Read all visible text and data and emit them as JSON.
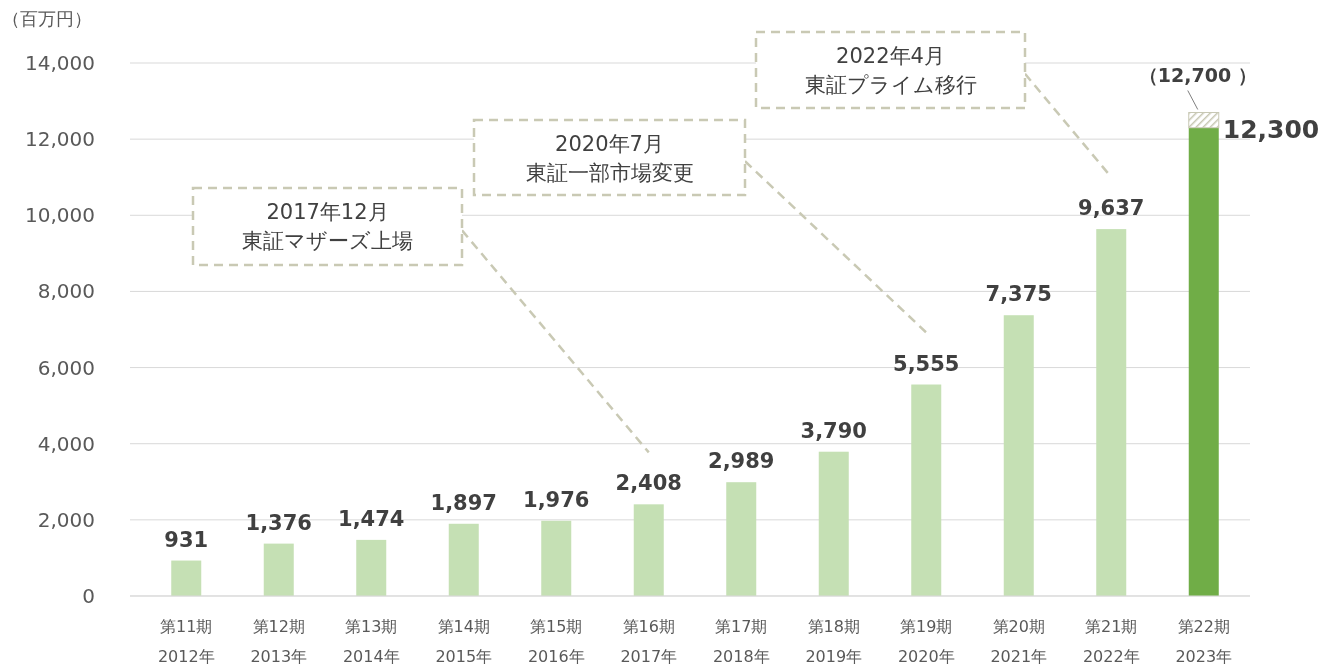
{
  "chart_data": {
    "type": "bar",
    "stacked": true,
    "ylabel": "（百万円）",
    "categories": [
      "第11期\n2012年",
      "第12期\n2013年",
      "第13期\n2014年",
      "第14期\n2015年",
      "第15期\n2016年",
      "第16期\n2017年",
      "第17期\n2018年",
      "第18期\n2019年",
      "第19期\n2020年",
      "第20期\n2021年",
      "第21期\n2022年",
      "第22期\n2023年"
    ],
    "series": [
      {
        "colors": [
          "#c5e0b4",
          "#c5e0b4",
          "#c5e0b4",
          "#c5e0b4",
          "#c5e0b4",
          "#c5e0b4",
          "#c5e0b4",
          "#c5e0b4",
          "#c5e0b4",
          "#c5e0b4",
          "#c5e0b4",
          "#70ad47"
        ],
        "values": [
          931,
          1376,
          1474,
          1897,
          1976,
          2408,
          2989,
          3790,
          5555,
          7375,
          9637,
          12300
        ],
        "value_labels": [
          "931",
          "1,376",
          "1,474",
          "1,897",
          "1,976",
          "2,408",
          "2,989",
          "3,790",
          "5,555",
          "7,375",
          "9,637",
          null
        ]
      },
      {
        "color": "#c8c8b4",
        "values": [
          null,
          null,
          null,
          null,
          null,
          null,
          null,
          null,
          null,
          null,
          null,
          400
        ]
      }
    ],
    "ylim": [
      0,
      14000
    ],
    "yticks": [
      0,
      {
        "value": 2000,
        "label": "2,000"
      },
      {
        "value": 4000,
        "label": "4,000"
      },
      {
        "value": 6000,
        "label": "6,000"
      },
      {
        "value": 8000,
        "label": "8,000"
      },
      {
        "value": 10000,
        "label": "10,000"
      },
      {
        "value": 12000,
        "label": "12,000"
      },
      {
        "value": 14000,
        "label": "14,000"
      }
    ],
    "grid": "y",
    "annotations": [
      "2017年12月東証マザーズ上場",
      "2020年7月東証一部市場変更",
      "2022年4月東証プライム移行",
      {
        "text": "12,300",
        "x": "第22期\n2023年",
        "y": 12300
      },
      {
        "text": "（12,700 ）",
        "x": "第22期\n2023年",
        "y": 12700
      }
    ]
  }
}
